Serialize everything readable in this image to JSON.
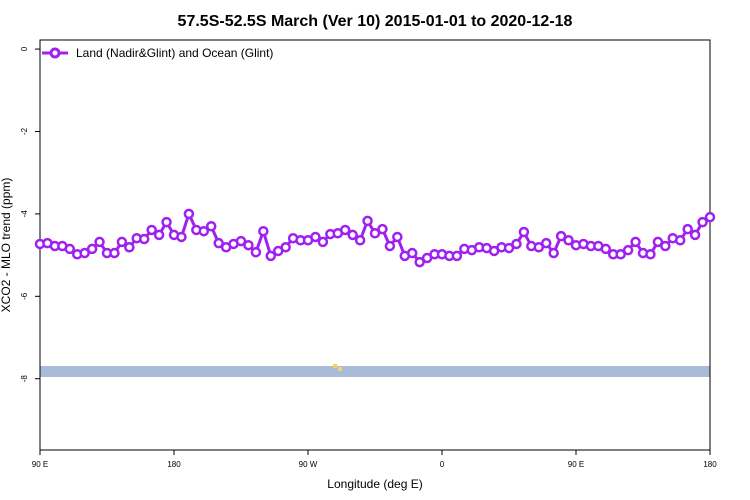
{
  "chart_data": {
    "type": "line",
    "title": "57.5S-52.5S March (Ver 10)   2015-01-01 to 2020-12-18",
    "x_label": "Longitude (deg E)",
    "y_label": "XCO2 - MLO trend (ppm)",
    "xlim": [
      90,
      540
    ],
    "xticks": [
      {
        "value": 90,
        "label": "90 E"
      },
      {
        "value": 180,
        "label": "180"
      },
      {
        "value": 270,
        "label": "90 W"
      },
      {
        "value": 360,
        "label": "0"
      },
      {
        "value": 450,
        "label": "90 E"
      },
      {
        "value": 540,
        "label": "180"
      }
    ],
    "ylim": [
      -9.73,
      0.22
    ],
    "yticks": [
      0,
      -2,
      -4,
      -6,
      -8
    ],
    "legend": "top-left",
    "x": [
      90,
      95,
      100,
      105,
      110,
      115,
      120,
      125,
      130,
      135,
      140,
      145,
      150,
      155,
      160,
      165,
      170,
      175,
      180,
      185,
      190,
      195,
      200,
      205,
      210,
      215,
      220,
      225,
      230,
      235,
      240,
      245,
      250,
      255,
      260,
      265,
      270,
      275,
      280,
      285,
      290,
      295,
      300,
      305,
      310,
      315,
      320,
      325,
      330,
      335,
      340,
      345,
      350,
      355,
      360,
      365,
      370,
      375,
      380,
      385,
      390,
      395,
      400,
      405,
      410,
      415,
      420,
      425,
      430,
      435,
      440,
      445,
      450,
      455,
      460,
      465,
      470,
      475,
      480,
      485,
      490,
      495,
      500,
      505,
      510,
      515,
      520,
      525,
      530,
      535,
      540
    ],
    "series": [
      {
        "name": "Land (Nadir&Glint) and Ocean (Glint)",
        "color": "#a020f0",
        "values": [
          -4.73,
          -4.71,
          -4.78,
          -4.78,
          -4.85,
          -4.98,
          -4.95,
          -4.85,
          -4.68,
          -4.95,
          -4.95,
          -4.68,
          -4.81,
          -4.59,
          -4.61,
          -4.39,
          -4.51,
          -4.2,
          -4.51,
          -4.56,
          -4.0,
          -4.39,
          -4.42,
          -4.3,
          -4.71,
          -4.81,
          -4.73,
          -4.66,
          -4.76,
          -4.93,
          -4.42,
          -5.02,
          -4.9,
          -4.81,
          -4.59,
          -4.64,
          -4.64,
          -4.56,
          -4.68,
          -4.49,
          -4.47,
          -4.39,
          -4.51,
          -4.64,
          -4.17,
          -4.47,
          -4.37,
          -4.78,
          -4.56,
          -5.02,
          -4.95,
          -5.17,
          -5.07,
          -4.98,
          -4.98,
          -5.02,
          -5.02,
          -4.85,
          -4.88,
          -4.81,
          -4.83,
          -4.9,
          -4.81,
          -4.83,
          -4.73,
          -4.44,
          -4.78,
          -4.81,
          -4.71,
          -4.95,
          -4.54,
          -4.64,
          -4.76,
          -4.73,
          -4.78,
          -4.78,
          -4.85,
          -4.98,
          -4.98,
          -4.88,
          -4.68,
          -4.95,
          -4.98,
          -4.68,
          -4.78,
          -4.59,
          -4.64,
          -4.37,
          -4.51,
          -4.2,
          -4.08
        ]
      }
    ]
  }
}
